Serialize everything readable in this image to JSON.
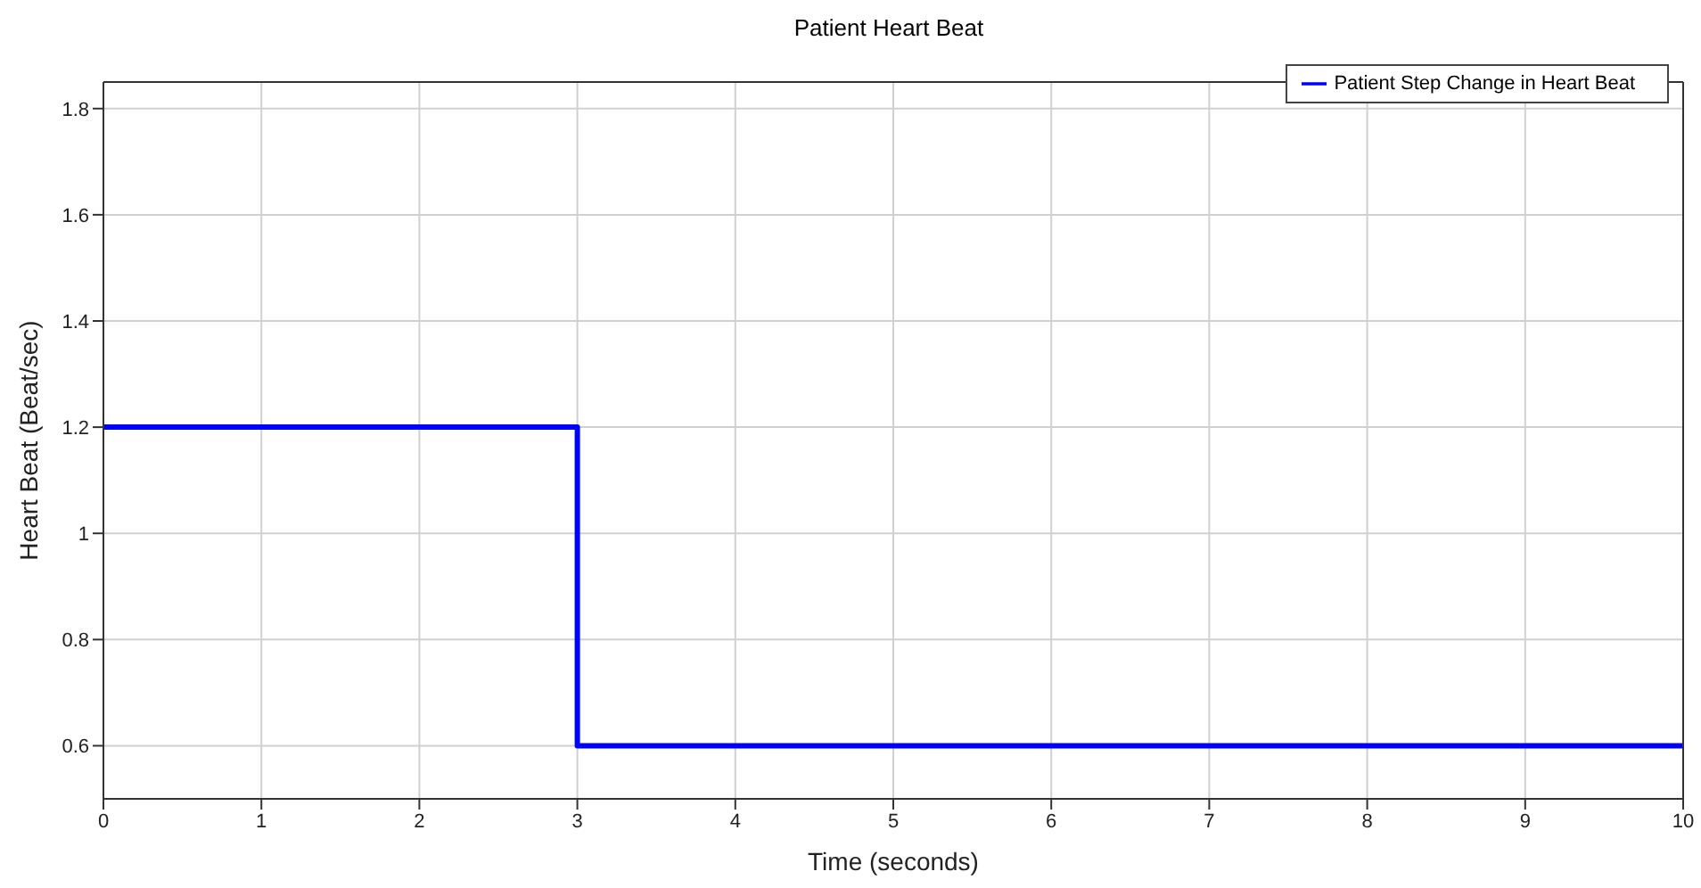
{
  "chart_data": {
    "type": "step",
    "title": "Patient Heart Beat",
    "xlabel": "Time (seconds)",
    "ylabel": "Heart Beat (Beat/sec)",
    "x": [
      0,
      3,
      10
    ],
    "series": [
      {
        "name": "Patient Step Change in Heart Beat",
        "color": "#0000ff",
        "values": [
          1.2,
          0.6,
          0.6
        ]
      }
    ],
    "xlim": [
      0,
      10
    ],
    "xticks": [
      0,
      1,
      2,
      3,
      4,
      5,
      6,
      7,
      8,
      9,
      10
    ],
    "ylim": [
      0.5,
      1.85
    ],
    "yticks": [
      0.6,
      0.8,
      1,
      1.2,
      1.4,
      1.6,
      1.8
    ],
    "grid": true,
    "legend": "top right"
  }
}
